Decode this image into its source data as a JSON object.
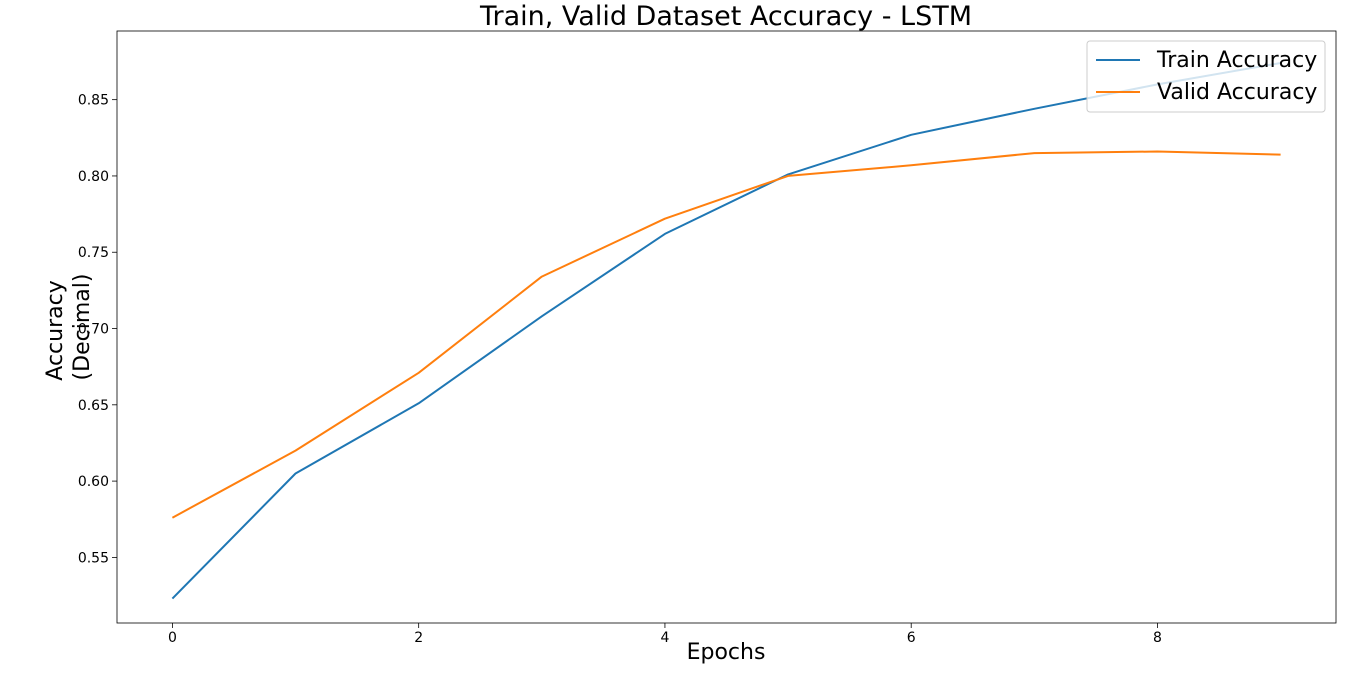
{
  "chart_data": {
    "type": "line",
    "title": "Train, Valid Dataset Accuracy - LSTM",
    "xlabel": "Epochs",
    "ylabel_lines": [
      "Accuracy",
      "(Decimal)"
    ],
    "x": [
      0,
      1,
      2,
      3,
      4,
      5,
      6,
      7,
      8,
      9
    ],
    "xlim": [
      -0.45,
      9.45
    ],
    "ylim": [
      0.507,
      0.895
    ],
    "xticks": [
      0,
      2,
      4,
      6,
      8
    ],
    "xtick_labels": [
      "0",
      "2",
      "4",
      "6",
      "8"
    ],
    "yticks": [
      0.55,
      0.6,
      0.65,
      0.7,
      0.75,
      0.8,
      0.85
    ],
    "ytick_labels": [
      "0.55",
      "0.60",
      "0.65",
      "0.70",
      "0.75",
      "0.80",
      "0.85"
    ],
    "grid": false,
    "legend_position": "top-right",
    "series": [
      {
        "name": "Train Accuracy",
        "color": "#1f77b4",
        "values": [
          0.523,
          0.605,
          0.651,
          0.708,
          0.762,
          0.801,
          0.827,
          0.844,
          0.86,
          0.874
        ]
      },
      {
        "name": "Valid Accuracy",
        "color": "#ff7f0e",
        "values": [
          0.576,
          0.62,
          0.671,
          0.734,
          0.772,
          0.8,
          0.807,
          0.815,
          0.816,
          0.814
        ]
      }
    ]
  }
}
